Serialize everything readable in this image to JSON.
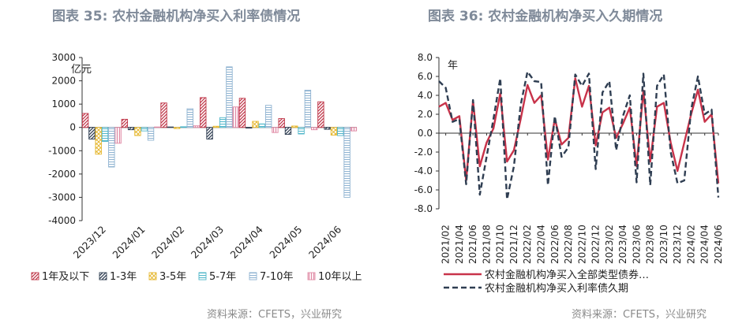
{
  "left": {
    "title": "图表 35: 农村金融机构净买入利率债情况",
    "source": "资料来源：CFETS，兴业研究",
    "chart_data": {
      "type": "bar",
      "title": "图表 35: 农村金融机构净买入利率债情况",
      "ylabel": "亿元",
      "ylim": [
        -4000,
        3000
      ],
      "yticks": [
        3000,
        2000,
        1000,
        0,
        -1000,
        -2000,
        -3000,
        -4000
      ],
      "categories": [
        "2023/12",
        "2024/01",
        "2024/02",
        "2024/03",
        "2024/04",
        "2024/05",
        "2024/06"
      ],
      "series": [
        {
          "name": "1年及以下",
          "color": "#c0394b",
          "pattern": "diag",
          "values": [
            600,
            350,
            1050,
            1280,
            1250,
            380,
            1100
          ]
        },
        {
          "name": "1-3年",
          "color": "#2f3e52",
          "pattern": "diag",
          "values": [
            -500,
            -100,
            20,
            -500,
            -30,
            -300,
            -80
          ]
        },
        {
          "name": "3-5年",
          "color": "#e6b830",
          "pattern": "cross",
          "values": [
            -1150,
            -350,
            -50,
            50,
            260,
            60,
            -330
          ]
        },
        {
          "name": "5-7年",
          "color": "#4fb6c9",
          "pattern": "hline",
          "values": [
            -600,
            -150,
            30,
            420,
            150,
            -280,
            -350
          ]
        },
        {
          "name": "7-10年",
          "color": "#8fb3d1",
          "pattern": "hline",
          "values": [
            -1700,
            -550,
            800,
            2600,
            950,
            1600,
            -3000
          ]
        },
        {
          "name": "10年以上",
          "color": "#e08aa5",
          "pattern": "vline",
          "values": [
            -680,
            20,
            70,
            880,
            -220,
            -100,
            -150
          ]
        }
      ],
      "legend_position": "bottom"
    }
  },
  "right": {
    "title": "图表 36: 农村金融机构净买入久期情况",
    "source": "资料来源：CFETS，兴业研究",
    "chart_data": {
      "type": "line",
      "title": "图表 36: 农村金融机构净买入久期情况",
      "ylabel": "年",
      "ylim": [
        -8,
        8
      ],
      "yticks": [
        "8.0",
        "6.0",
        "4.0",
        "2.0",
        "0.0",
        "-2.0",
        "-4.0",
        "-6.0",
        "-8.0"
      ],
      "x_tick_labels": [
        "2021/02",
        "2021/04",
        "2021/06",
        "2021/08",
        "2021/10",
        "2021/12",
        "2022/02",
        "2022/04",
        "2022/06",
        "2022/08",
        "2022/10",
        "2022/12",
        "2023/02",
        "2023/04",
        "2023/06",
        "2023/08",
        "2023/10",
        "2023/12",
        "2024/02",
        "2024/04",
        "2024/06"
      ],
      "x": [
        "2021/01",
        "2021/02",
        "2021/03",
        "2021/04",
        "2021/05",
        "2021/06",
        "2021/07",
        "2021/08",
        "2021/09",
        "2021/10",
        "2021/11",
        "2021/12",
        "2022/01",
        "2022/02",
        "2022/03",
        "2022/04",
        "2022/05",
        "2022/06",
        "2022/07",
        "2022/08",
        "2022/09",
        "2022/10",
        "2022/11",
        "2022/12",
        "2023/01",
        "2023/02",
        "2023/03",
        "2023/04",
        "2023/05",
        "2023/06",
        "2023/07",
        "2023/08",
        "2023/09",
        "2023/10",
        "2023/11",
        "2023/12",
        "2024/01",
        "2024/02",
        "2024/03",
        "2024/04",
        "2024/05",
        "2024/06"
      ],
      "series": [
        {
          "name": "农村金融机构净买入全部类型债券…",
          "color": "#c8334a",
          "style": "solid",
          "values": [
            2.8,
            3.2,
            1.4,
            1.8,
            -5.0,
            3.4,
            -3.5,
            -1.0,
            0.5,
            4.2,
            -3.0,
            -1.8,
            1.5,
            5.1,
            3.2,
            4.0,
            -2.8,
            1.5,
            -1.2,
            -0.5,
            5.8,
            2.8,
            5.0,
            -1.3,
            2.2,
            2.7,
            -0.5,
            1.0,
            2.7,
            -3.5,
            4.5,
            -3.0,
            2.8,
            3.2,
            -1.0,
            -4.0,
            -1.0,
            2.0,
            4.6,
            1.2,
            2.0,
            -5.3
          ]
        },
        {
          "name": "农村金融机构净买入利率债久期",
          "color": "#2f3e52",
          "style": "dashed",
          "values": [
            5.5,
            4.8,
            1.2,
            1.5,
            -5.4,
            3.5,
            -6.5,
            -2.5,
            1.5,
            5.8,
            -7.0,
            -3.5,
            3.0,
            6.5,
            5.5,
            5.4,
            -5.5,
            1.8,
            -2.5,
            -1.5,
            6.2,
            5.0,
            6.3,
            -3.8,
            4.3,
            5.5,
            -1.8,
            1.8,
            4.0,
            -5.2,
            6.3,
            -5.5,
            5.0,
            6.2,
            -2.0,
            -5.3,
            -5.0,
            2.5,
            6.0,
            2.0,
            2.5,
            -6.8
          ]
        }
      ],
      "legend_position": "bottom"
    }
  }
}
